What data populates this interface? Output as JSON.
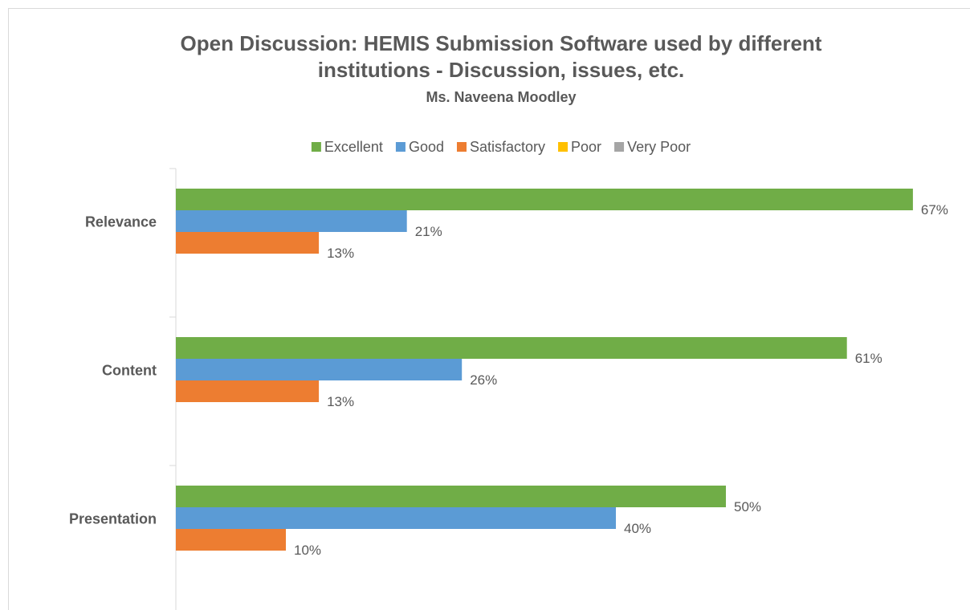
{
  "chart_data": {
    "type": "hbar",
    "title": "Open Discussion: HEMIS Submission Software used by different institutions - Discussion, issues, etc.",
    "title_lines": [
      "Open Discussion: HEMIS Submission Software used by different",
      "institutions - Discussion, issues, etc."
    ],
    "subtitle": "Ms. Naveena Moodley",
    "categories": [
      "Relevance",
      "Content",
      "Presentation"
    ],
    "series": [
      {
        "name": "Excellent",
        "color": "#70ad47",
        "values": [
          67,
          61,
          50
        ],
        "value_labels": [
          "67%",
          "61%",
          "50%"
        ]
      },
      {
        "name": "Good",
        "color": "#5b9bd5",
        "values": [
          21,
          26,
          40
        ],
        "value_labels": [
          "21%",
          "26%",
          "40%"
        ]
      },
      {
        "name": "Satisfactory",
        "color": "#ed7d31",
        "values": [
          13,
          13,
          10
        ],
        "value_labels": [
          "13%",
          "13%",
          "10%"
        ]
      },
      {
        "name": "Poor",
        "color": "#ffc000",
        "values": [
          null,
          null,
          null
        ]
      },
      {
        "name": "Very Poor",
        "color": "#a5a5a5",
        "values": [
          null,
          null,
          null
        ]
      }
    ],
    "xlim": [
      0,
      70
    ],
    "legend": "top"
  }
}
